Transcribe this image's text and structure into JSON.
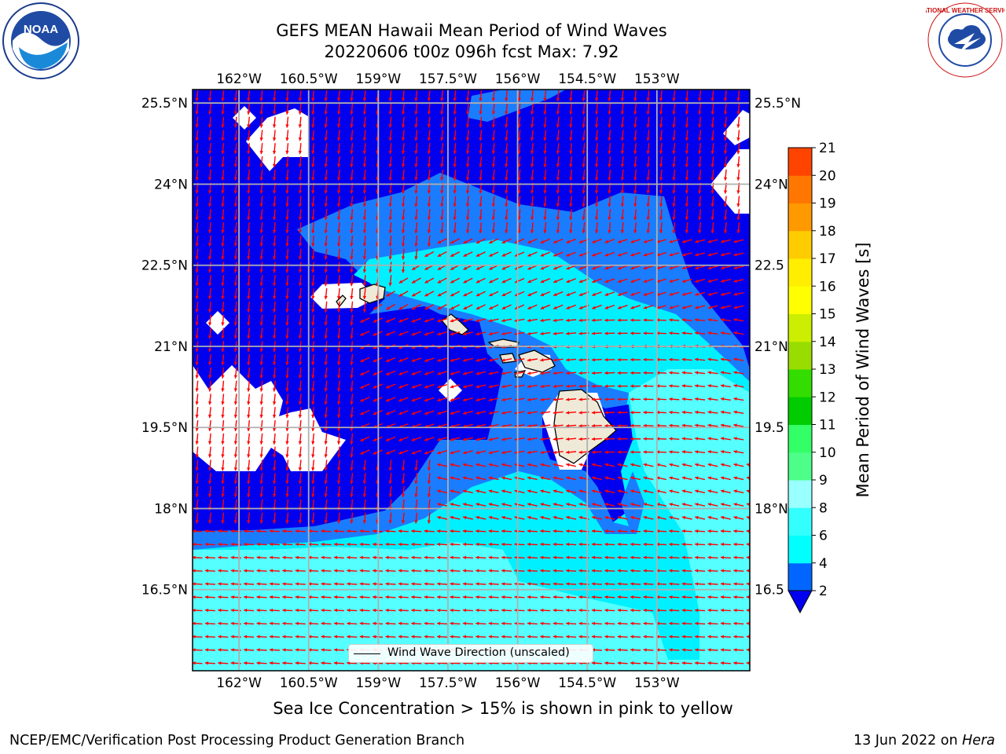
{
  "title": {
    "line1": "GEFS MEAN Hawaii Mean Period of Wind Waves",
    "line2": "20220606 t00z 096h fcst   Max: 7.92"
  },
  "logos": {
    "left": "noaa-logo",
    "right": "national-weather-service-logo",
    "left_text": "NOAA",
    "right_text": "NATIONAL WEATHER SERVICE"
  },
  "map": {
    "lon_range": [
      -163.0,
      -151.0
    ],
    "lat_range": [
      15.0,
      25.75
    ],
    "lon_ticks": [
      "162°W",
      "160.5°W",
      "159°W",
      "157.5°W",
      "156°W",
      "154.5°W",
      "153°W"
    ],
    "lat_ticks": [
      "25.5°N",
      "24°N",
      "22.5°N",
      "21°N",
      "19.5°N",
      "18°N",
      "16.5°N"
    ],
    "right_lat_ticks": [
      "25.5°N",
      "24°N",
      "22.5",
      "21°N",
      "19.5",
      "18°N",
      "16.5"
    ],
    "gridlines": true,
    "arrow_color": "#ff0000",
    "land_color": "#efead8",
    "missing_color": "#ffffff",
    "islands": [
      "Niihau",
      "Kauai",
      "Oahu",
      "Molokai",
      "Lanai",
      "Kahoolawe",
      "Maui",
      "Hawaii"
    ]
  },
  "legend": {
    "label": "Wind Wave Direction (unscaled)",
    "placement": "lower-center"
  },
  "colorbar": {
    "label": "Mean Period of Wind Waves [s]",
    "tick_labels": [
      "2",
      "4",
      "6",
      "8",
      "9",
      "10",
      "11",
      "12",
      "13",
      "14",
      "15",
      "16",
      "17",
      "18",
      "19",
      "20",
      "21"
    ],
    "colors": [
      "#0066ff",
      "#00ffff",
      "#33ffff",
      "#99ffff",
      "#4dff88",
      "#33ff66",
      "#00cc00",
      "#33dd00",
      "#99dd00",
      "#ccee00",
      "#ffff00",
      "#ffee00",
      "#ffcc00",
      "#ff9900",
      "#ff7700",
      "#ff4400",
      "#ff0000"
    ],
    "under_color": "#0000ee",
    "extend": "min"
  },
  "subtitle": "Sea Ice Concentration > 15% is shown in pink to yellow",
  "footer": {
    "left": "NCEP/EMC/Verification Post Processing Product Generation Branch",
    "right_prefix": "13 Jun 2022 on ",
    "right_machine": "Hera"
  },
  "chart_data": {
    "type": "heatmap",
    "title": "GEFS MEAN Hawaii Mean Period of Wind Waves",
    "subtitle": "20220606 t00z 096h fcst   Max: 7.92",
    "variable": "Mean Period of Wind Waves [s]",
    "max": 7.92,
    "x_range": [
      -163.0,
      -151.0
    ],
    "y_range": [
      15.0,
      25.75
    ],
    "color_levels": [
      2,
      4,
      6,
      8,
      9,
      10,
      11,
      12,
      13,
      14,
      15,
      16,
      17,
      18,
      19,
      20,
      21
    ],
    "regions": [
      {
        "band": "<2",
        "description": "north and west of the islands"
      },
      {
        "band": "2-4",
        "description": "transition band around islands"
      },
      {
        "band": "4-8",
        "description": "south and east of the islands"
      }
    ],
    "vector_field": "Wind Wave Direction (unscaled)"
  }
}
